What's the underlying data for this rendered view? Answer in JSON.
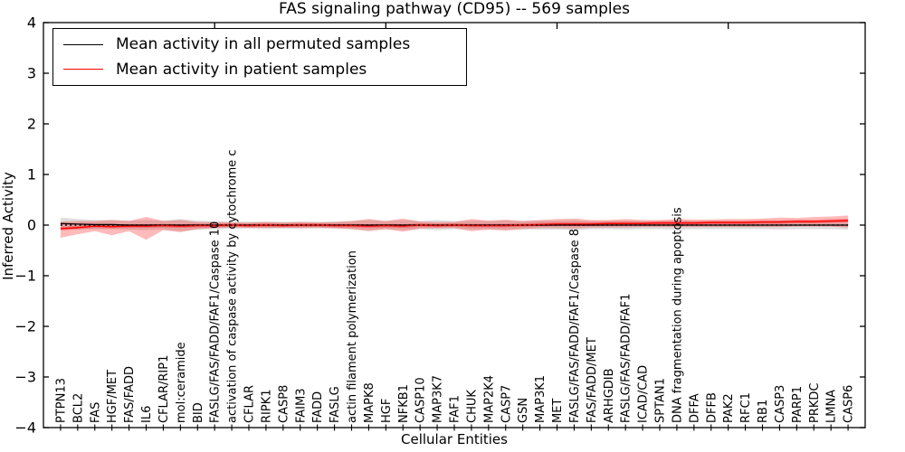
{
  "chart_data": {
    "type": "line",
    "title": "FAS signaling pathway (CD95) -- 569 samples",
    "xlabel": "Cellular Entities",
    "ylabel": "Inferred Activity",
    "ylim": [
      -4,
      4
    ],
    "yticks": [
      4,
      3,
      2,
      1,
      0,
      -1,
      -2,
      -3,
      -4
    ],
    "top_xticks_at": [
      9,
      19,
      29,
      39
    ],
    "grid": false,
    "legend_position": "upper left",
    "background_color": "#ffffff",
    "axis_color": "#000000",
    "categories": [
      "PTPN13",
      "BCL2",
      "FAS",
      "HGF/MET",
      "FAS/FADD",
      "IL6",
      "CFLAR/RIP1",
      "mol:ceramide",
      "BID",
      "FASLG/FAS/FADD/FAF1/Caspase 10",
      "activation of caspase activity by cytochrome c",
      "CFLAR",
      "RIPK1",
      "CASP8",
      "FAIM3",
      "FADD",
      "FASLG",
      "actin filament polymerization",
      "MAPK8",
      "HGF",
      "NFKB1",
      "CASP10",
      "MAP3K7",
      "FAF1",
      "CHUK",
      "MAP2K4",
      "CASP7",
      "GSN",
      "MAP3K1",
      "MET",
      "FASLG/FAS/FADD/FAF1/Caspase 8",
      "FAS/FADD/MET",
      "ARHGDIB",
      "FASLG/FAS/FADD/FAF1",
      "ICAD/CAD",
      "SPTAN1",
      "DNA fragmentation during apoptosis",
      "DFFA",
      "DFFB",
      "PAK2",
      "RFC1",
      "RB1",
      "CASP3",
      "PARP1",
      "PRKDC",
      "LMNA",
      "CASP6"
    ],
    "series": [
      {
        "key": "permuted",
        "name": "Mean activity in all permuted samples",
        "color": "#000000",
        "line_style": "solid",
        "values": [
          0.03,
          0.02,
          0.01,
          0.01,
          0,
          0,
          0,
          0,
          0,
          0,
          0,
          0,
          0,
          0,
          0,
          0,
          0,
          0,
          0,
          0,
          0,
          0,
          0,
          0,
          0,
          0,
          0,
          0,
          0,
          0,
          0,
          0,
          0,
          0,
          0,
          0,
          0,
          0,
          0,
          0,
          0,
          0,
          0,
          0,
          0,
          0,
          0
        ]
      },
      {
        "key": "patient",
        "name": "Mean activity in patient samples",
        "color": "#ff0000",
        "line_style": "solid",
        "values": [
          -0.07,
          -0.05,
          -0.02,
          -0.03,
          -0.02,
          -0.02,
          -0.01,
          -0.02,
          -0.01,
          -0.01,
          0,
          -0.01,
          0,
          -0.01,
          0,
          0,
          -0.01,
          -0.01,
          -0.02,
          -0.01,
          -0.02,
          0,
          -0.01,
          0,
          -0.01,
          -0.01,
          -0.01,
          0,
          0.01,
          0.02,
          0.02,
          0.02,
          0.03,
          0.03,
          0.03,
          0.04,
          0.04,
          0.04,
          0.05,
          0.05,
          0.05,
          0.06,
          0.06,
          0.07,
          0.07,
          0.08,
          0.09
        ]
      }
    ],
    "zero_line": {
      "value": 0,
      "color": "#000000",
      "style": "dotted"
    },
    "bands": [
      {
        "key": "permuted_std",
        "center_series": "permuted",
        "color": "#000000",
        "opacity": 0.13,
        "halfwidth": [
          0.12,
          0.1,
          0.09,
          0.09,
          0.09,
          0.1,
          0.09,
          0.12,
          0.09,
          0.08,
          0.07,
          0.07,
          0.07,
          0.07,
          0.07,
          0.07,
          0.07,
          0.08,
          0.1,
          0.08,
          0.1,
          0.08,
          0.1,
          0.08,
          0.09,
          0.08,
          0.09,
          0.08,
          0.09,
          0.09,
          0.1,
          0.08,
          0.08,
          0.09,
          0.08,
          0.08,
          0.09,
          0.08,
          0.08,
          0.08,
          0.08,
          0.08,
          0.09,
          0.08,
          0.08,
          0.08,
          0.09
        ]
      },
      {
        "key": "patient_std",
        "color": "#ff0000",
        "opacity": 0.27,
        "upper": [
          0.07,
          0.08,
          0.08,
          0.1,
          0.08,
          0.16,
          0.08,
          0.1,
          0.06,
          0.06,
          0.05,
          0.05,
          0.06,
          0.05,
          0.06,
          0.05,
          0.06,
          0.08,
          0.12,
          0.08,
          0.13,
          0.07,
          0.06,
          0.06,
          0.12,
          0.09,
          0.11,
          0.08,
          0.1,
          0.12,
          0.13,
          0.1,
          0.1,
          0.12,
          0.1,
          0.1,
          0.12,
          0.11,
          0.11,
          0.12,
          0.12,
          0.13,
          0.15,
          0.14,
          0.16,
          0.17,
          0.19
        ],
        "lower": [
          -0.25,
          -0.18,
          -0.12,
          -0.2,
          -0.12,
          -0.29,
          -0.1,
          -0.14,
          -0.08,
          -0.06,
          -0.05,
          -0.05,
          -0.06,
          -0.05,
          -0.06,
          -0.05,
          -0.06,
          -0.08,
          -0.12,
          -0.08,
          -0.13,
          -0.07,
          -0.06,
          -0.06,
          -0.12,
          -0.09,
          -0.11,
          -0.08,
          -0.06,
          -0.06,
          -0.07,
          -0.05,
          -0.05,
          -0.05,
          -0.04,
          -0.04,
          -0.04,
          -0.04,
          -0.04,
          -0.04,
          -0.04,
          -0.04,
          -0.04,
          -0.03,
          -0.03,
          -0.03,
          -0.05
        ]
      },
      {
        "key": "patient_inner",
        "center_series": "patient",
        "color": "#ff0000",
        "opacity": 0.3,
        "halfwidth_const": 0.035
      }
    ]
  }
}
